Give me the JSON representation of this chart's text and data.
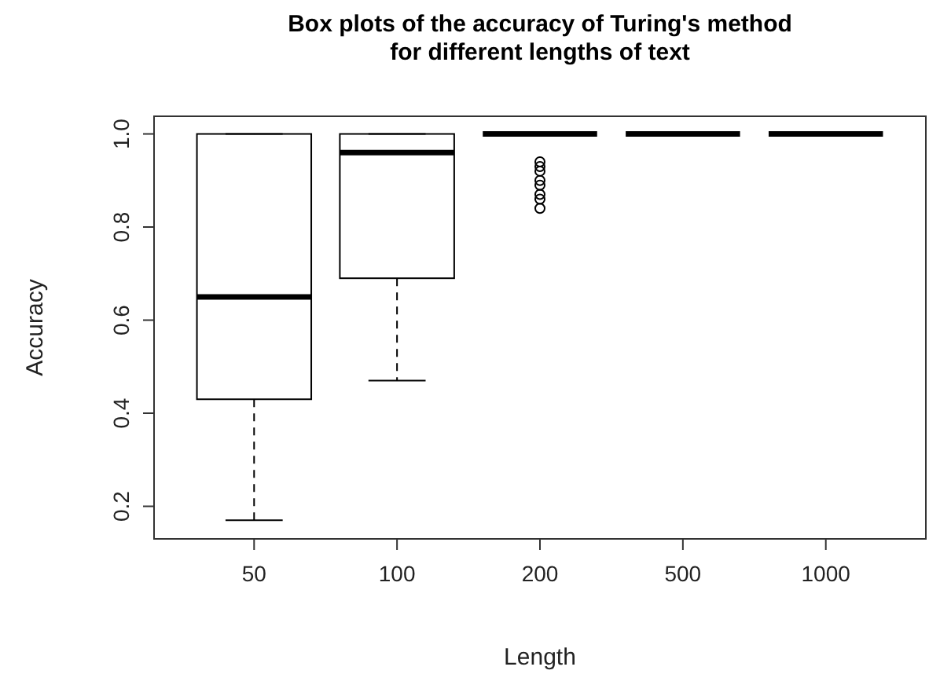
{
  "chart_data": {
    "type": "box",
    "title": "Box plots of the accuracy of Turing's method\nfor different lengths of text",
    "xlabel": "Length",
    "ylabel": "Accuracy",
    "categories": [
      "50",
      "100",
      "200",
      "500",
      "1000"
    ],
    "boxes": [
      {
        "low": 0.17,
        "q1": 0.43,
        "median": 0.65,
        "q3": 1.0,
        "high": 1.0
      },
      {
        "low": 0.47,
        "q1": 0.69,
        "median": 0.96,
        "q3": 1.0,
        "high": 1.0
      },
      {
        "low": 1.0,
        "q1": 1.0,
        "median": 1.0,
        "q3": 1.0,
        "high": 1.0,
        "outliers": [
          0.94,
          0.93,
          0.92,
          0.9,
          0.89,
          0.87,
          0.86,
          0.84
        ]
      },
      {
        "low": 1.0,
        "q1": 1.0,
        "median": 1.0,
        "q3": 1.0,
        "high": 1.0
      },
      {
        "low": 1.0,
        "q1": 1.0,
        "median": 1.0,
        "q3": 1.0,
        "high": 1.0
      }
    ],
    "ylim": [
      0.13,
      1.038
    ],
    "yticks": [
      {
        "value": 0.2,
        "label": "0.2"
      },
      {
        "value": 0.4,
        "label": "0.4"
      },
      {
        "value": 0.6,
        "label": "0.6"
      },
      {
        "value": 0.8,
        "label": "0.8"
      },
      {
        "value": 1.0,
        "label": "1.0"
      }
    ],
    "grid": false
  }
}
